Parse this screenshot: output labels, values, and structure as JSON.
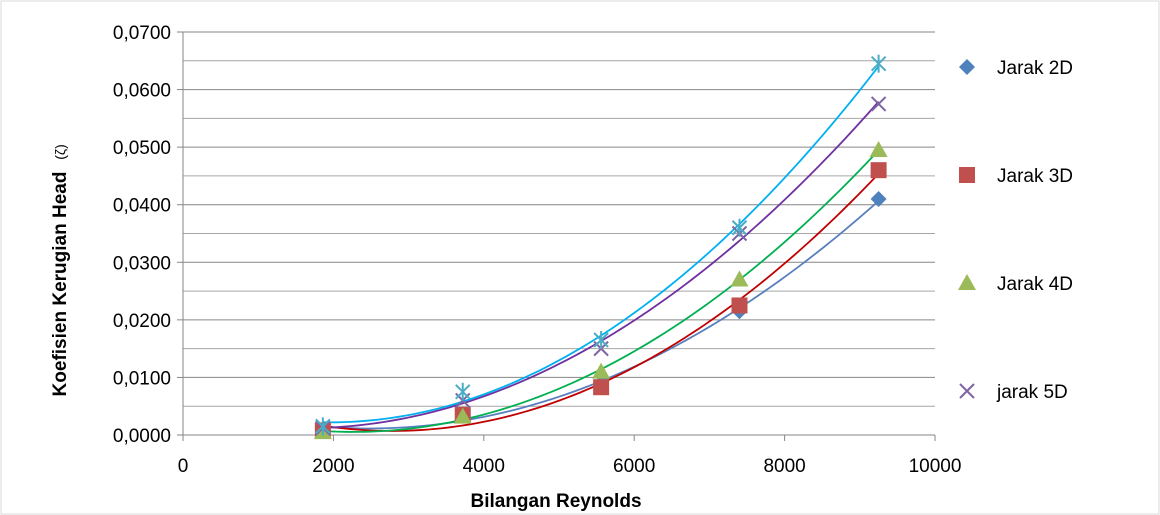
{
  "chart_data": {
    "type": "scatter",
    "xlabel": "Bilangan Reynolds",
    "ylabel": "Koefisien Kerugian Head",
    "ylabel_symbol": "(ζ)",
    "xlim": [
      0,
      10000
    ],
    "ylim": [
      0,
      0.07
    ],
    "x_ticks": [
      0,
      2000,
      4000,
      6000,
      8000,
      10000
    ],
    "x_tick_labels": [
      "0",
      "2000",
      "4000",
      "6000",
      "8000",
      "10000"
    ],
    "y_ticks": [
      0,
      0.01,
      0.02,
      0.03,
      0.04,
      0.05,
      0.06,
      0.07
    ],
    "y_tick_labels": [
      "0,0000",
      "0,0100",
      "0,0200",
      "0,0300",
      "0,0400",
      "0,0500",
      "0,0600",
      "0,0700"
    ],
    "grid": true,
    "legend_position": "right",
    "trendline": "polynomial",
    "series": [
      {
        "name": "Jarak 2D",
        "marker": "diamond",
        "color": "#4F81BD",
        "line_color": "#5A7FBF",
        "x": [
          1860,
          3720,
          5560,
          7400,
          9250
        ],
        "y": [
          0.001,
          0.0035,
          0.009,
          0.0215,
          0.041
        ]
      },
      {
        "name": "Jarak 3D",
        "marker": "square",
        "color": "#C0504D",
        "line_color": "#C00000",
        "x": [
          1860,
          3720,
          5560,
          7400,
          9250
        ],
        "y": [
          0.0008,
          0.0035,
          0.0083,
          0.0225,
          0.046
        ]
      },
      {
        "name": "Jarak 4D",
        "marker": "triangle",
        "color": "#9BBB59",
        "line_color": "#00B050",
        "x": [
          1860,
          3720,
          5560,
          7400,
          9250
        ],
        "y": [
          0.0005,
          0.0032,
          0.011,
          0.027,
          0.0495
        ]
      },
      {
        "name": "jarak 5D",
        "marker": "x",
        "color": "#8064A2",
        "line_color": "#7030A0",
        "x": [
          1860,
          3720,
          5560,
          7400,
          9250
        ],
        "y": [
          0.0012,
          0.006,
          0.015,
          0.035,
          0.0575
        ]
      },
      {
        "marker": "star",
        "color": "#4BACC6",
        "line_color": "#00B0F0",
        "x": [
          1860,
          3720,
          5560,
          7400,
          9250
        ],
        "y": [
          0.0015,
          0.0075,
          0.0165,
          0.036,
          0.0645
        ]
      }
    ]
  }
}
